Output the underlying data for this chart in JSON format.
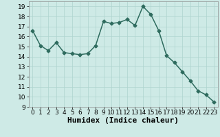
{
  "x": [
    0,
    1,
    2,
    3,
    4,
    5,
    6,
    7,
    8,
    9,
    10,
    11,
    12,
    13,
    14,
    15,
    16,
    17,
    18,
    19,
    20,
    21,
    22,
    23
  ],
  "y": [
    16.6,
    15.1,
    14.6,
    15.4,
    14.4,
    14.3,
    14.2,
    14.3,
    15.1,
    17.5,
    17.3,
    17.4,
    17.7,
    17.1,
    19.0,
    18.2,
    16.6,
    14.1,
    13.4,
    12.5,
    11.6,
    10.6,
    10.2,
    9.5
  ],
  "xlabel": "Humidex (Indice chaleur)",
  "xlim": [
    -0.5,
    23.5
  ],
  "ylim": [
    9,
    19.5
  ],
  "yticks": [
    9,
    10,
    11,
    12,
    13,
    14,
    15,
    16,
    17,
    18,
    19
  ],
  "xticks": [
    0,
    1,
    2,
    3,
    4,
    5,
    6,
    7,
    8,
    9,
    10,
    11,
    12,
    13,
    14,
    15,
    16,
    17,
    18,
    19,
    20,
    21,
    22,
    23
  ],
  "line_color": "#2e6b5e",
  "marker": "D",
  "marker_size": 2.5,
  "bg_color": "#ceeae6",
  "grid_color": "#aed4cf",
  "xlabel_fontsize": 8,
  "tick_fontsize": 6.5,
  "line_width": 1.1
}
